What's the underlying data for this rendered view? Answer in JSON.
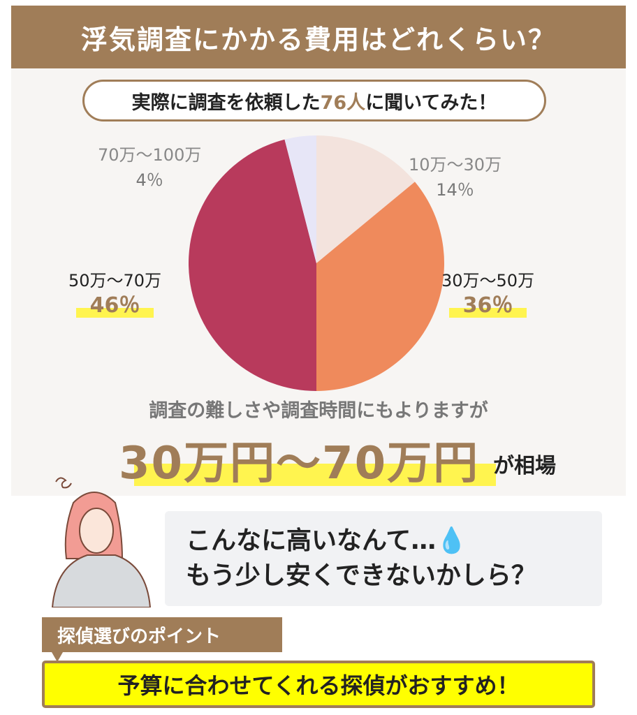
{
  "header": {
    "title": "浮気調査にかかる費用はどれくらい？"
  },
  "survey": {
    "prefix": "実際に調査を依頼した",
    "count": "76人",
    "suffix": "に聞いてみた！"
  },
  "chart_data": {
    "type": "pie",
    "categories": [
      "10万～30万",
      "30万～50万",
      "50万～70万",
      "70万～100万"
    ],
    "values": [
      14,
      36,
      46,
      4
    ],
    "labels": [
      "14％",
      "36％",
      "46％",
      "4％"
    ],
    "colors": [
      "#f3e3dd",
      "#ef8a5c",
      "#b83a5c",
      "#e7e6f7"
    ]
  },
  "note": "調査の難しさや調査時間にもよりますが",
  "range": {
    "text": "30万円～70万円",
    "suffix": "が相場"
  },
  "bubble": {
    "line1": "こんなに高いなんて…💧",
    "line2": "もう少し安くできないかしら？"
  },
  "tip": {
    "tag": "探偵選びのポイント",
    "text": "予算に合わせてくれる探偵がおすすめ！"
  }
}
